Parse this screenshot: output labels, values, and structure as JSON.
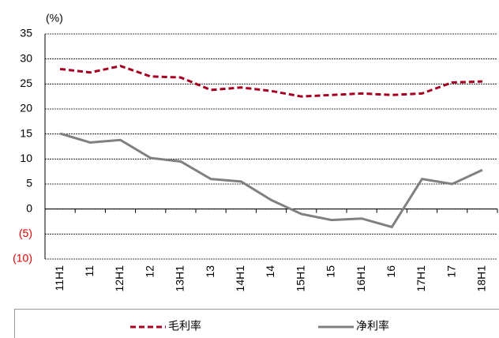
{
  "chart_data": {
    "type": "line",
    "y_unit_label": "(%)",
    "categories": [
      "11H1",
      "11",
      "12H1",
      "12",
      "13H1",
      "13",
      "14H1",
      "14",
      "15H1",
      "15",
      "16H1",
      "16",
      "17H1",
      "17",
      "18H1"
    ],
    "series": [
      {
        "name": "毛利率",
        "color": "#a50021",
        "dash": true,
        "values": [
          28,
          27.3,
          28.6,
          26.5,
          26.3,
          23.8,
          24.3,
          23.6,
          22.5,
          22.8,
          23.1,
          22.8,
          23.1,
          25.3,
          25.5
        ]
      },
      {
        "name": "净利率",
        "color": "#808080",
        "dash": false,
        "values": [
          15.1,
          13.3,
          13.8,
          10.2,
          9.5,
          6.0,
          5.5,
          1.8,
          -1.0,
          -2.2,
          -1.9,
          -3.6,
          6.0,
          5.0,
          7.8
        ]
      }
    ],
    "ylim": [
      -10,
      35
    ],
    "yticks": [
      {
        "value": -10,
        "label": "(10)"
      },
      {
        "value": -5,
        "label": "(5)"
      },
      0,
      5,
      10,
      15,
      20,
      25,
      30,
      35
    ],
    "negative_tick_color": "#e00000",
    "grid": true
  }
}
